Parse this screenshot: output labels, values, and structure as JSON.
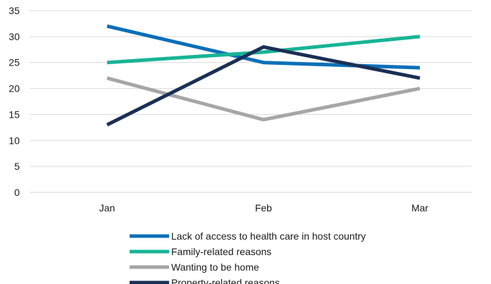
{
  "chart_data": {
    "type": "line",
    "title": "",
    "xlabel": "",
    "ylabel": "",
    "categories": [
      "Jan",
      "Feb",
      "Mar"
    ],
    "ylim": [
      0,
      35
    ],
    "yticks": [
      0,
      5,
      10,
      15,
      20,
      25,
      30,
      35
    ],
    "grid": true,
    "legend_position": "bottom",
    "series": [
      {
        "name": "Lack of access to health care in host country",
        "values": [
          32,
          25,
          24
        ],
        "color": "#0a6fb8"
      },
      {
        "name": "Family-related reasons",
        "values": [
          25,
          27,
          30
        ],
        "color": "#17b495"
      },
      {
        "name": "Wanting to be home",
        "values": [
          22,
          14,
          20
        ],
        "color": "#a6a6a6"
      },
      {
        "name": "Property-related reasons",
        "values": [
          13,
          28,
          22
        ],
        "color": "#1b2f55"
      }
    ]
  }
}
